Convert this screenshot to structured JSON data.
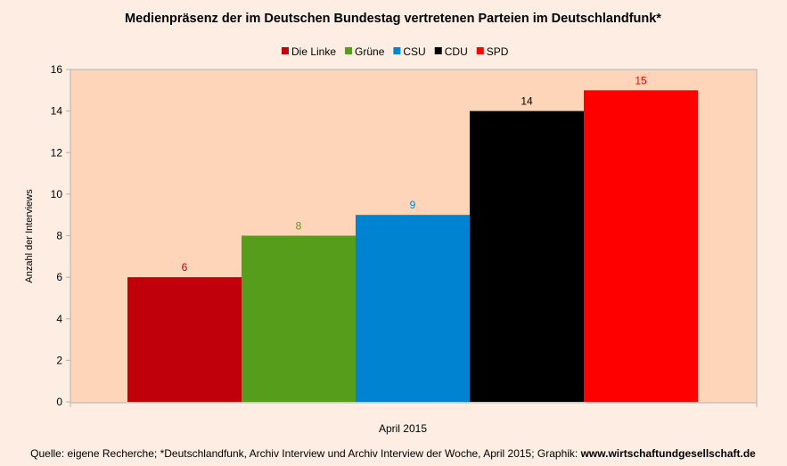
{
  "chart_data": {
    "type": "bar",
    "title": "Medienpräsenz der im Deutschen Bundestag vertretenen Parteien im Deutschlandfunk*",
    "categories": [
      "April 2015"
    ],
    "series": [
      {
        "name": "Die Linke",
        "values": [
          6
        ],
        "color": "#c0000b"
      },
      {
        "name": "Grüne",
        "values": [
          8
        ],
        "color": "#579d1c"
      },
      {
        "name": "CSU",
        "values": [
          9
        ],
        "color": "#0084d1"
      },
      {
        "name": "CDU",
        "values": [
          14
        ],
        "color": "#000000"
      },
      {
        "name": "SPD",
        "values": [
          15
        ],
        "color": "#ff0000"
      }
    ],
    "label_colors": [
      "#c0000b",
      "#579d1c",
      "#0084d1",
      "#000000",
      "#ff0000"
    ],
    "xlabel": "April 2015",
    "ylabel": "Anzahl der Interviews",
    "ylim": [
      0,
      16
    ],
    "yticks": [
      "0",
      "2",
      "4",
      "6",
      "8",
      "10",
      "12",
      "14",
      "16"
    ],
    "grid": false,
    "legend": "top",
    "plot_bg": "#fed5b8"
  },
  "footer": {
    "source": "Quelle: eigene Recherche; *Deutschlandfunk, Archiv Interview und Archiv Interview der Woche, April 2015; Graphik: ",
    "site": "www.wirtschaftundgesellschaft.de"
  }
}
